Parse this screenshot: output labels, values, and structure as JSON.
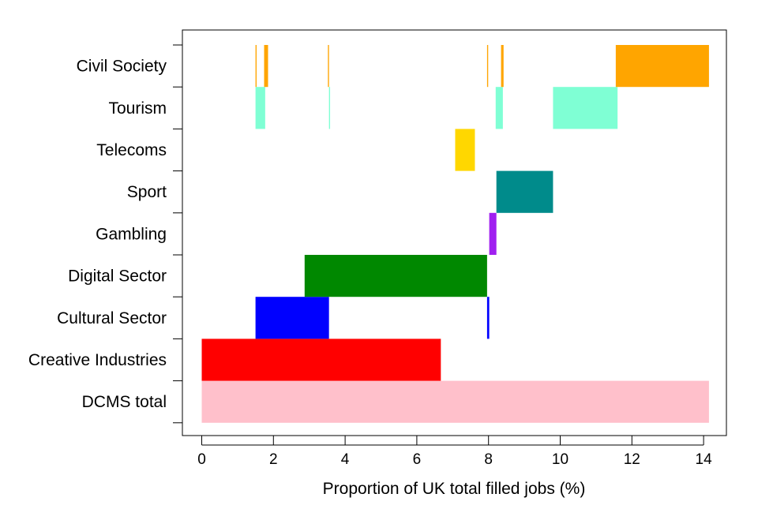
{
  "chart_data": {
    "type": "bar",
    "orientation": "horizontal",
    "subtype": "floating-segments",
    "title": "",
    "xlabel": "Proportion of UK total filled jobs (%)",
    "ylabel": "",
    "xlim": [
      -0.55,
      14.7
    ],
    "xticks": [
      0,
      2,
      4,
      6,
      8,
      10,
      12,
      14
    ],
    "grid": false,
    "legend": "none",
    "categories": [
      "DCMS total",
      "Creative Industries",
      "Cultural Sector",
      "Digital Sector",
      "Gambling",
      "Sport",
      "Telecoms",
      "Tourism",
      "Civil Society"
    ],
    "colors": {
      "DCMS total": "#FFC0CB",
      "Creative Industries": "#FF0000",
      "Cultural Sector": "#0000FF",
      "Digital Sector": "#008800",
      "Gambling": "#A020F0",
      "Sport": "#008B8B",
      "Telecoms": "#FFD700",
      "Tourism": "#7FFFD4",
      "Civil Society": "#FFA500"
    },
    "segments": {
      "DCMS total": [
        [
          0,
          14.15
        ]
      ],
      "Creative Industries": [
        [
          0,
          6.67
        ]
      ],
      "Cultural Sector": [
        [
          1.5,
          3.55
        ],
        [
          7.96,
          8.02
        ]
      ],
      "Digital Sector": [
        [
          2.87,
          7.96
        ]
      ],
      "Gambling": [
        [
          8.02,
          8.22
        ]
      ],
      "Sport": [
        [
          8.22,
          9.8
        ]
      ],
      "Telecoms": [
        [
          7.07,
          7.62
        ]
      ],
      "Tourism": [
        [
          1.5,
          1.77
        ],
        [
          3.55,
          3.58
        ],
        [
          8.2,
          8.4
        ],
        [
          9.8,
          11.6
        ]
      ],
      "Civil Society": [
        [
          1.5,
          1.53
        ],
        [
          1.74,
          1.85
        ],
        [
          3.52,
          3.55
        ],
        [
          7.96,
          7.99
        ],
        [
          8.35,
          8.42
        ],
        [
          11.55,
          14.15
        ]
      ]
    }
  }
}
